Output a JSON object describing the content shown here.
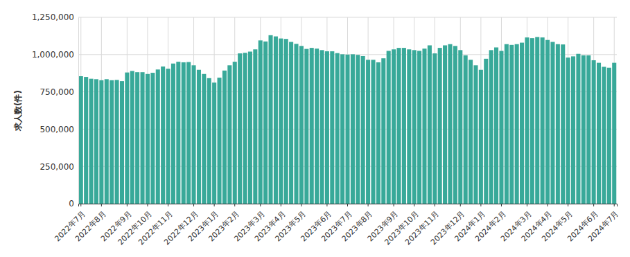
{
  "chart_data": {
    "type": "bar",
    "y_label": "求人数(件)",
    "categories": [
      "2022年7月",
      null,
      null,
      null,
      "2022年8月",
      null,
      null,
      null,
      null,
      "2022年9月",
      null,
      null,
      null,
      "2022年10月",
      null,
      null,
      null,
      "2022年11月",
      null,
      null,
      null,
      null,
      "2022年12月",
      null,
      null,
      null,
      "2023年1月",
      null,
      null,
      null,
      "2023年2月",
      null,
      null,
      null,
      null,
      "2023年3月",
      null,
      null,
      null,
      "2023年4月",
      null,
      null,
      null,
      "2023年5月",
      null,
      null,
      null,
      null,
      "2023年6月",
      null,
      null,
      null,
      "2023年7月",
      null,
      null,
      null,
      "2023年8月",
      null,
      null,
      null,
      null,
      "2023年9月",
      null,
      null,
      null,
      "2023年10月",
      null,
      null,
      null,
      "2023年11月",
      null,
      null,
      null,
      null,
      "2023年12月",
      null,
      null,
      null,
      "2024年1月",
      null,
      null,
      null,
      "2024年2月",
      null,
      null,
      null,
      null,
      "2024年3月",
      null,
      null,
      null,
      "2024年4月",
      null,
      null,
      null,
      "2024年5月",
      null,
      null,
      null,
      null,
      "2024年6月",
      null,
      null,
      null,
      "2024年7月"
    ],
    "values": [
      855000,
      850000,
      838000,
      835000,
      828000,
      835000,
      828000,
      830000,
      822000,
      880000,
      890000,
      882000,
      882000,
      870000,
      878000,
      900000,
      920000,
      905000,
      940000,
      952000,
      948000,
      950000,
      928000,
      898000,
      870000,
      842000,
      812000,
      845000,
      893000,
      928000,
      952000,
      1008000,
      1012000,
      1020000,
      1035000,
      1095000,
      1088000,
      1130000,
      1122000,
      1108000,
      1105000,
      1085000,
      1072000,
      1058000,
      1038000,
      1045000,
      1040000,
      1030000,
      1022000,
      1022000,
      1010000,
      1002000,
      1000000,
      1002000,
      998000,
      990000,
      965000,
      965000,
      948000,
      975000,
      1025000,
      1035000,
      1045000,
      1045000,
      1035000,
      1030000,
      1025000,
      1040000,
      1062000,
      1008000,
      1045000,
      1062000,
      1070000,
      1058000,
      1030000,
      995000,
      965000,
      928000,
      898000,
      972000,
      1030000,
      1048000,
      1025000,
      1070000,
      1065000,
      1070000,
      1080000,
      1115000,
      1110000,
      1118000,
      1115000,
      1098000,
      1085000,
      1070000,
      1068000,
      980000,
      988000,
      1005000,
      995000,
      995000,
      962000,
      945000,
      918000,
      912000,
      945000
    ],
    "color": "#38a999",
    "ylim": [
      0,
      1250000
    ],
    "yticks": [
      0,
      {
        "value": 250000,
        "label": "250,000"
      },
      {
        "value": 500000,
        "label": "500,000"
      },
      {
        "value": 750000,
        "label": "750,000"
      },
      {
        "value": 1000000,
        "label": "1,000,000"
      },
      {
        "value": 1250000,
        "label": "1,250,000"
      }
    ],
    "grid": true
  }
}
